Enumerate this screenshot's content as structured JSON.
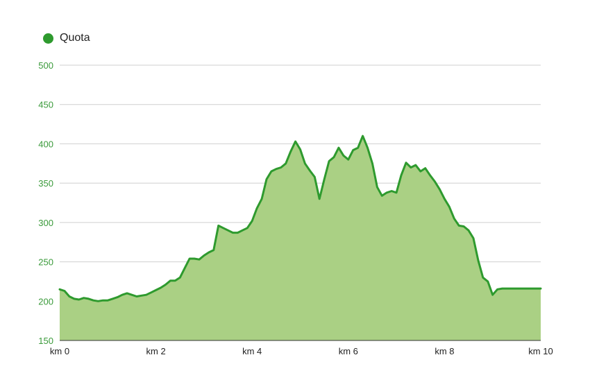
{
  "legend": {
    "label": "Quota"
  },
  "colors": {
    "line": "#2e9a2e",
    "fill": "#aad084",
    "grid": "#cfcfcf",
    "ytick": "#3a9a3a",
    "xtick": "#222222"
  },
  "chart_data": {
    "type": "area",
    "title": "",
    "xlabel": "",
    "ylabel": "",
    "xlim": [
      0,
      10
    ],
    "ylim": [
      150,
      500
    ],
    "grid": true,
    "legend_position": "top-left",
    "yticks": [
      {
        "value": 150,
        "label": "150"
      },
      {
        "value": 200,
        "label": "200"
      },
      {
        "value": 250,
        "label": "250"
      },
      {
        "value": 300,
        "label": "300"
      },
      {
        "value": 350,
        "label": "350"
      },
      {
        "value": 400,
        "label": "400"
      },
      {
        "value": 450,
        "label": "450"
      },
      {
        "value": 500,
        "label": "500"
      }
    ],
    "xticks": [
      {
        "value": 0,
        "label": "km 0"
      },
      {
        "value": 2,
        "label": "km 2"
      },
      {
        "value": 4,
        "label": "km 4"
      },
      {
        "value": 6,
        "label": "km 6"
      },
      {
        "value": 8,
        "label": "km 8"
      },
      {
        "value": 10,
        "label": "km 10"
      }
    ],
    "series": [
      {
        "name": "Quota",
        "x": [
          0,
          0.1,
          0.2,
          0.3,
          0.4,
          0.5,
          0.6,
          0.7,
          0.8,
          0.9,
          1.0,
          1.1,
          1.2,
          1.3,
          1.4,
          1.5,
          1.6,
          1.7,
          1.8,
          1.9,
          2.0,
          2.1,
          2.2,
          2.3,
          2.4,
          2.5,
          2.6,
          2.7,
          2.8,
          2.9,
          3.0,
          3.1,
          3.2,
          3.3,
          3.4,
          3.5,
          3.6,
          3.7,
          3.8,
          3.9,
          4.0,
          4.1,
          4.2,
          4.3,
          4.4,
          4.5,
          4.6,
          4.7,
          4.8,
          4.9,
          5.0,
          5.1,
          5.2,
          5.3,
          5.4,
          5.5,
          5.6,
          5.7,
          5.8,
          5.9,
          6.0,
          6.1,
          6.2,
          6.3,
          6.4,
          6.5,
          6.6,
          6.7,
          6.8,
          6.9,
          7.0,
          7.1,
          7.2,
          7.3,
          7.4,
          7.5,
          7.6,
          7.7,
          7.8,
          7.9,
          8.0,
          8.1,
          8.2,
          8.3,
          8.4,
          8.5,
          8.6,
          8.7,
          8.8,
          8.9,
          9.0,
          9.1,
          9.2,
          9.3,
          9.4,
          9.5,
          9.6,
          9.7,
          9.8,
          9.9,
          10.0
        ],
        "values": [
          215,
          213,
          206,
          203,
          202,
          204,
          203,
          201,
          200,
          201,
          201,
          203,
          205,
          208,
          210,
          208,
          206,
          207,
          208,
          211,
          214,
          217,
          221,
          226,
          226,
          230,
          242,
          254,
          254,
          253,
          258,
          262,
          265,
          296,
          293,
          290,
          287,
          287,
          290,
          293,
          302,
          318,
          330,
          355,
          365,
          368,
          370,
          375,
          390,
          403,
          393,
          375,
          366,
          358,
          330,
          355,
          378,
          383,
          395,
          385,
          380,
          392,
          395,
          410,
          395,
          375,
          345,
          334,
          338,
          340,
          338,
          360,
          376,
          370,
          373,
          365,
          369,
          360,
          352,
          342,
          330,
          320,
          305,
          296,
          295,
          290,
          280,
          252,
          230,
          225,
          208,
          215,
          216,
          216,
          216,
          216,
          216,
          216,
          216,
          216,
          216
        ]
      }
    ]
  }
}
